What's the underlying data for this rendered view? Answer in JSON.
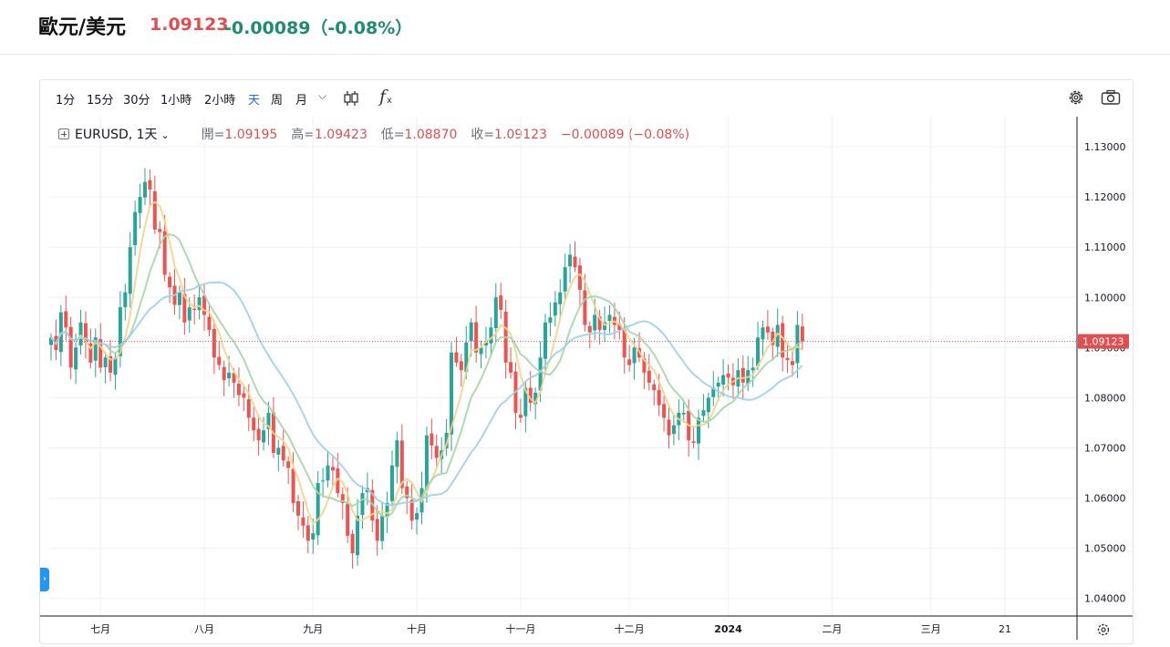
{
  "header": {
    "pair": "歐元/美元",
    "price": "1.09123",
    "change": "-0.00089（-0.08%）"
  },
  "toolbar": {
    "intervals": [
      "1分",
      "15分",
      "30分",
      "1小時",
      "2小時",
      "天",
      "周",
      "月"
    ],
    "active_interval": "天"
  },
  "legend": {
    "symbol": "EURUSD, 1天",
    "open_label": "開=",
    "open": "1.09195",
    "high_label": "高=",
    "high": "1.09423",
    "low_label": "低=",
    "low": "1.08870",
    "close_label": "收=",
    "close": "1.09123",
    "change": "−0.00089 (−0.08%)"
  },
  "colors": {
    "up": "#26a69a",
    "down": "#ef5350",
    "ma_fast": "#f3d48a",
    "ma_mid": "#a5d6a7",
    "ma_slow": "#9fd0e6",
    "price_tag": "#e04f4f"
  },
  "chart_data": {
    "type": "candlestick",
    "ylim": [
      1.0365,
      1.136
    ],
    "yticks": [
      "1.13000",
      "1.12000",
      "1.11000",
      "1.10000",
      "1.09000",
      "1.08000",
      "1.07000",
      "1.06000",
      "1.05000",
      "1.04000"
    ],
    "xticks": [
      {
        "label": "七月",
        "i": 10
      },
      {
        "label": "八月",
        "i": 31
      },
      {
        "label": "九月",
        "i": 53
      },
      {
        "label": "十月",
        "i": 74
      },
      {
        "label": "十一月",
        "i": 95
      },
      {
        "label": "十二月",
        "i": 117
      },
      {
        "label": "2024",
        "i": 137
      },
      {
        "label": "二月",
        "i": 158
      },
      {
        "label": "三月",
        "i": 178
      },
      {
        "label": "21",
        "i": 193
      }
    ],
    "last_price": "1.09123",
    "close": [
      1.092,
      1.0895,
      1.097,
      1.094,
      1.086,
      1.09,
      1.095,
      1.091,
      1.087,
      1.092,
      1.086,
      1.088,
      1.085,
      1.088,
      1.098,
      1.101,
      1.11,
      1.117,
      1.12,
      1.123,
      1.1215,
      1.1135,
      1.113,
      1.1045,
      1.102,
      1.0985,
      1.101,
      1.095,
      1.098,
      1.0975,
      1.1,
      1.0965,
      1.0935,
      1.088,
      1.0865,
      1.0835,
      1.085,
      1.083,
      1.0805,
      1.08,
      1.076,
      1.0735,
      1.0715,
      1.0735,
      1.077,
      1.069,
      1.07,
      1.0675,
      1.066,
      1.059,
      1.0565,
      1.0545,
      1.0515,
      1.053,
      1.063,
      1.0635,
      1.0665,
      1.0655,
      1.061,
      1.059,
      1.0525,
      1.049,
      1.0565,
      1.061,
      1.062,
      1.0555,
      1.0515,
      1.0565,
      1.059,
      1.0665,
      1.0715,
      1.062,
      1.06,
      1.0555,
      1.057,
      1.062,
      1.0725,
      1.0705,
      1.068,
      1.0695,
      1.073,
      1.089,
      1.087,
      1.0855,
      1.091,
      1.095,
      1.089,
      1.09,
      1.091,
      1.094,
      1.1,
      1.0975,
      1.087,
      1.085,
      1.077,
      1.076,
      1.082,
      1.079,
      1.081,
      1.088,
      1.095,
      1.096,
      1.099,
      1.101,
      1.106,
      1.1085,
      1.106,
      1.1015,
      1.0945,
      1.093,
      1.0965,
      1.0935,
      1.095,
      1.0965,
      1.0945,
      1.0935,
      1.088,
      1.0865,
      1.09,
      1.088,
      1.085,
      1.083,
      1.0815,
      1.0785,
      1.076,
      1.0725,
      1.0745,
      1.077,
      1.077,
      1.0715,
      1.071,
      1.076,
      1.0775,
      1.08,
      1.082,
      1.083,
      1.0845,
      1.084,
      1.0825,
      1.0855,
      1.083,
      1.0855,
      1.086,
      1.092,
      1.094,
      1.093,
      1.0905,
      1.0945,
      1.088,
      1.0875,
      1.0865,
      1.0945,
      1.0912
    ],
    "series": [
      {
        "name": "",
        "type": "ma",
        "color": "#f3d48a"
      },
      {
        "name": "",
        "type": "ma",
        "color": "#a5d6a7"
      },
      {
        "name": "",
        "type": "ma",
        "color": "#9fd0e6"
      }
    ]
  }
}
